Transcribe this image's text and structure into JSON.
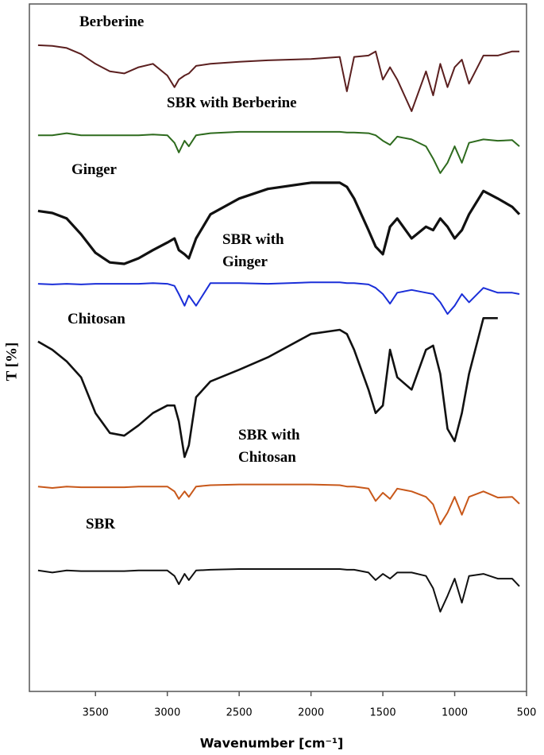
{
  "chart_data": {
    "type": "line",
    "x_label": "Wavenumber [cm⁻¹]",
    "y_label": "T [%]",
    "xlim": [
      3960,
      500
    ],
    "ylim": [
      0,
      100
    ],
    "xticks": [
      3500,
      3000,
      2500,
      2000,
      1500,
      1000,
      500
    ],
    "x": [
      3900,
      3800,
      3700,
      3600,
      3500,
      3400,
      3300,
      3200,
      3100,
      3000,
      2950,
      2920,
      2880,
      2850,
      2800,
      2700,
      2500,
      2300,
      2000,
      1800,
      1750,
      1700,
      1600,
      1550,
      1500,
      1450,
      1400,
      1300,
      1200,
      1150,
      1100,
      1050,
      1000,
      950,
      900,
      800,
      700,
      600,
      550
    ],
    "series": [
      {
        "name": "Berberine",
        "color": "#5b1f1f",
        "values": [
          94.0,
          93.9,
          93.6,
          92.7,
          91.3,
          90.2,
          89.9,
          90.8,
          91.3,
          89.6,
          87.9,
          89.0,
          89.6,
          89.9,
          91.0,
          91.3,
          91.6,
          91.8,
          92.0,
          92.3,
          87.3,
          92.3,
          92.5,
          93.1,
          89.0,
          90.8,
          89.0,
          84.4,
          90.2,
          86.7,
          91.3,
          87.9,
          90.8,
          91.9,
          88.4,
          92.5,
          92.5,
          93.1,
          93.1
        ]
      },
      {
        "name": "SBR with Berberine",
        "color": "#2e6b1e",
        "values": [
          80.9,
          80.9,
          81.2,
          80.9,
          80.9,
          80.9,
          80.9,
          80.9,
          81.0,
          80.9,
          79.8,
          78.4,
          80.1,
          79.3,
          80.9,
          81.2,
          81.4,
          81.4,
          81.4,
          81.4,
          81.3,
          81.3,
          81.2,
          80.9,
          80.1,
          79.5,
          80.7,
          80.3,
          79.3,
          77.5,
          75.4,
          76.9,
          79.3,
          76.9,
          79.8,
          80.3,
          80.1,
          80.2,
          79.3
        ]
      },
      {
        "name": "Ginger",
        "color": "#111111",
        "values": [
          69.9,
          69.6,
          68.8,
          66.5,
          63.8,
          62.4,
          62.2,
          63.0,
          64.2,
          65.3,
          65.9,
          64.2,
          63.6,
          63.0,
          65.9,
          69.4,
          71.7,
          73.1,
          74.0,
          74.0,
          73.4,
          71.7,
          67.1,
          64.7,
          63.6,
          67.6,
          68.8,
          65.9,
          67.6,
          67.1,
          68.8,
          67.6,
          65.9,
          67.1,
          69.4,
          72.8,
          71.7,
          70.5,
          69.4
        ]
      },
      {
        "name": "SBR with Ginger",
        "color": "#1a2ed8",
        "values": [
          59.3,
          59.2,
          59.3,
          59.2,
          59.3,
          59.3,
          59.3,
          59.3,
          59.4,
          59.3,
          59.0,
          57.8,
          56.1,
          57.6,
          56.1,
          59.4,
          59.4,
          59.3,
          59.5,
          59.5,
          59.4,
          59.4,
          59.2,
          58.7,
          57.8,
          56.4,
          58.0,
          58.4,
          58.0,
          57.8,
          56.6,
          54.9,
          56.1,
          57.8,
          56.6,
          58.7,
          58.0,
          58.0,
          57.8
        ]
      },
      {
        "name": "Chitosan",
        "color": "#111111",
        "values": [
          50.9,
          49.7,
          48.0,
          45.7,
          40.5,
          37.6,
          37.2,
          38.7,
          40.5,
          41.6,
          41.6,
          39.3,
          34.1,
          35.8,
          42.8,
          45.1,
          46.8,
          48.6,
          52.0,
          52.6,
          52.0,
          49.7,
          43.9,
          40.5,
          41.6,
          49.7,
          45.7,
          43.9,
          49.7,
          50.3,
          46.2,
          38.2,
          36.4,
          40.5,
          46.2,
          54.3,
          54.3,
          null,
          null
        ]
      },
      {
        "name": "SBR with Chitosan",
        "color": "#c8581a",
        "values": [
          29.8,
          29.6,
          29.8,
          29.7,
          29.7,
          29.7,
          29.7,
          29.8,
          29.8,
          29.8,
          29.1,
          28.0,
          29.1,
          28.3,
          29.8,
          30.0,
          30.1,
          30.1,
          30.1,
          30.0,
          29.8,
          29.8,
          29.5,
          27.7,
          28.9,
          28.0,
          29.5,
          29.1,
          28.3,
          27.2,
          24.3,
          26.0,
          28.3,
          25.7,
          28.3,
          29.1,
          28.2,
          28.3,
          27.3
        ]
      },
      {
        "name": "SBR",
        "color": "#111111",
        "values": [
          17.6,
          17.3,
          17.6,
          17.5,
          17.5,
          17.5,
          17.5,
          17.6,
          17.6,
          17.6,
          16.8,
          15.6,
          17.1,
          16.2,
          17.6,
          17.7,
          17.8,
          17.8,
          17.8,
          17.8,
          17.7,
          17.7,
          17.3,
          16.2,
          17.1,
          16.4,
          17.3,
          17.3,
          16.8,
          15.0,
          11.6,
          13.9,
          16.4,
          12.9,
          16.8,
          17.1,
          16.4,
          16.4,
          15.3
        ]
      }
    ]
  }
}
